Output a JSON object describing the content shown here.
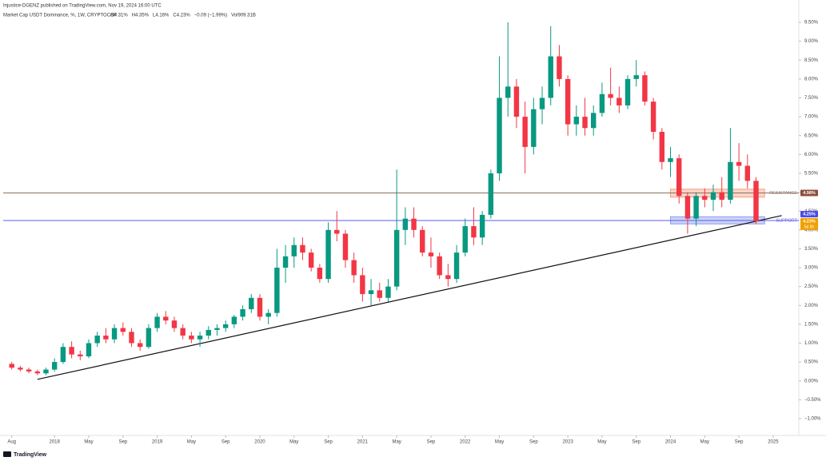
{
  "header": {
    "publisher": "Injustice-DGENZ published on TradingView.com, Nov 19, 2024 16:00 UTC",
    "symbol": "Market Cap USDT Dominance, %, 1W, CRYPTOCAP",
    "ohlc": [
      "O4.31%",
      "H4.35%",
      "L4.16%",
      "C4.23%",
      "−0.09 (−1.99%)",
      "Vol909.31B"
    ]
  },
  "footer": {
    "brand": "TradingView"
  },
  "chart_data": {
    "type": "candlestick",
    "colors": {
      "up": "#089981",
      "down": "#f23645"
    },
    "grid": false,
    "x": [
      "2017-08",
      "2017-09",
      "2017-10",
      "2017-11",
      "2017-12",
      "2018-01",
      "2018-02",
      "2018-03",
      "2018-04",
      "2018-05",
      "2018-06",
      "2018-07",
      "2018-08",
      "2018-09",
      "2018-10",
      "2018-11",
      "2018-12",
      "2019-01",
      "2019-02",
      "2019-03",
      "2019-04",
      "2019-05",
      "2019-06",
      "2019-07",
      "2019-08",
      "2019-09",
      "2019-10",
      "2019-11",
      "2019-12",
      "2020-01",
      "2020-02",
      "2020-03",
      "2020-04",
      "2020-05",
      "2020-06",
      "2020-07",
      "2020-08",
      "2020-09",
      "2020-10",
      "2020-11",
      "2020-12",
      "2021-01",
      "2021-02",
      "2021-03",
      "2021-04",
      "2021-05",
      "2021-06",
      "2021-07",
      "2021-08",
      "2021-09",
      "2021-10",
      "2021-11",
      "2021-12",
      "2022-01",
      "2022-02",
      "2022-03",
      "2022-04",
      "2022-05",
      "2022-06",
      "2022-07",
      "2022-08",
      "2022-09",
      "2022-10",
      "2022-11",
      "2022-12",
      "2023-01",
      "2023-02",
      "2023-03",
      "2023-04",
      "2023-05",
      "2023-06",
      "2023-07",
      "2023-08",
      "2023-09",
      "2023-10",
      "2023-11",
      "2023-12",
      "2024-01",
      "2024-02",
      "2024-03",
      "2024-04",
      "2024-05",
      "2024-06",
      "2024-07",
      "2024-08",
      "2024-09",
      "2024-10",
      "2024-11"
    ],
    "open": [
      0.45,
      0.35,
      0.3,
      0.25,
      0.2,
      0.3,
      0.5,
      0.9,
      0.7,
      0.65,
      1.0,
      1.2,
      1.1,
      1.4,
      1.3,
      1.0,
      0.9,
      1.4,
      1.7,
      1.6,
      1.4,
      1.2,
      1.1,
      1.2,
      1.35,
      1.4,
      1.5,
      1.7,
      1.9,
      2.2,
      1.7,
      1.8,
      3.0,
      3.3,
      3.6,
      3.4,
      3.0,
      2.7,
      4.0,
      3.9,
      3.2,
      2.8,
      2.3,
      2.4,
      2.2,
      2.5,
      4.0,
      4.3,
      4.0,
      3.4,
      3.3,
      2.8,
      2.7,
      3.4,
      4.1,
      3.8,
      4.4,
      5.5,
      7.5,
      7.8,
      7.0,
      6.2,
      7.2,
      7.5,
      8.6,
      8.0,
      6.8,
      7.0,
      6.7,
      7.1,
      7.6,
      7.5,
      7.3,
      8.0,
      8.1,
      7.4,
      6.6,
      5.8,
      5.9,
      4.9,
      4.3,
      4.9,
      4.8,
      5.0,
      4.8,
      5.8,
      5.7,
      5.3
    ],
    "high": [
      0.5,
      0.4,
      0.35,
      0.3,
      0.35,
      0.6,
      1.0,
      1.05,
      0.8,
      1.1,
      1.3,
      1.4,
      1.5,
      1.55,
      1.4,
      1.1,
      1.5,
      1.8,
      1.85,
      1.7,
      1.5,
      1.3,
      1.3,
      1.45,
      1.5,
      1.6,
      1.75,
      2.0,
      2.3,
      2.3,
      1.9,
      3.5,
      3.6,
      3.8,
      3.8,
      3.5,
      3.1,
      4.2,
      4.5,
      4.0,
      3.4,
      3.0,
      2.7,
      2.6,
      2.7,
      5.6,
      4.6,
      4.6,
      4.1,
      3.8,
      3.4,
      3.1,
      3.6,
      4.3,
      4.6,
      4.5,
      5.6,
      8.6,
      9.5,
      8.0,
      7.4,
      7.5,
      7.8,
      9.4,
      8.9,
      8.1,
      7.3,
      7.5,
      7.3,
      7.9,
      8.3,
      7.8,
      8.1,
      8.5,
      8.2,
      7.5,
      6.7,
      6.2,
      6.0,
      5.0,
      5.0,
      5.1,
      5.2,
      5.4,
      6.7,
      6.3,
      6.0,
      5.4
    ],
    "low": [
      0.3,
      0.25,
      0.2,
      0.15,
      0.15,
      0.25,
      0.45,
      0.6,
      0.55,
      0.6,
      0.9,
      1.0,
      1.0,
      1.2,
      0.9,
      0.8,
      0.85,
      1.3,
      1.5,
      1.3,
      1.1,
      1.0,
      0.9,
      1.1,
      1.2,
      1.3,
      1.4,
      1.6,
      1.8,
      1.6,
      1.5,
      1.7,
      2.6,
      3.0,
      3.2,
      2.9,
      2.6,
      2.6,
      3.7,
      3.0,
      2.6,
      2.1,
      2.0,
      2.1,
      2.1,
      2.4,
      3.6,
      3.8,
      3.3,
      3.0,
      2.7,
      2.5,
      2.6,
      3.3,
      3.6,
      3.6,
      4.3,
      5.3,
      7.0,
      6.7,
      5.5,
      6.0,
      6.8,
      7.3,
      7.8,
      6.5,
      6.5,
      6.5,
      6.5,
      7.0,
      7.3,
      7.1,
      7.2,
      7.8,
      7.3,
      6.4,
      5.6,
      5.4,
      4.7,
      3.9,
      4.1,
      4.6,
      4.5,
      4.6,
      4.7,
      5.3,
      5.1,
      4.16
    ],
    "close": [
      0.35,
      0.3,
      0.25,
      0.2,
      0.3,
      0.5,
      0.9,
      0.7,
      0.65,
      1.0,
      1.2,
      1.1,
      1.4,
      1.3,
      1.0,
      0.9,
      1.4,
      1.7,
      1.6,
      1.4,
      1.2,
      1.1,
      1.2,
      1.35,
      1.4,
      1.5,
      1.7,
      1.9,
      2.2,
      1.7,
      1.8,
      3.0,
      3.3,
      3.6,
      3.4,
      3.0,
      2.7,
      4.0,
      3.9,
      3.2,
      2.8,
      2.3,
      2.4,
      2.2,
      2.5,
      4.0,
      4.3,
      4.0,
      3.4,
      3.3,
      2.8,
      2.7,
      3.4,
      4.1,
      3.8,
      4.4,
      5.5,
      7.5,
      7.8,
      7.0,
      6.2,
      7.2,
      7.5,
      8.6,
      8.0,
      6.8,
      7.0,
      6.7,
      7.1,
      7.6,
      7.5,
      7.3,
      8.0,
      8.1,
      7.4,
      6.6,
      5.8,
      5.9,
      4.9,
      4.3,
      4.9,
      4.8,
      5.0,
      4.8,
      5.8,
      5.7,
      5.3,
      4.23
    ],
    "xlim": [
      "2017-07",
      "2025-04"
    ],
    "xticks": [
      {
        "value": "2017-08",
        "label": "Aug"
      },
      {
        "value": "2018-01",
        "label": "2018"
      },
      {
        "value": "2018-05",
        "label": "May"
      },
      {
        "value": "2018-09",
        "label": "Sep"
      },
      {
        "value": "2019-01",
        "label": "2019"
      },
      {
        "value": "2019-05",
        "label": "May"
      },
      {
        "value": "2019-09",
        "label": "Sep"
      },
      {
        "value": "2020-01",
        "label": "2020"
      },
      {
        "value": "2020-05",
        "label": "May"
      },
      {
        "value": "2020-09",
        "label": "Sep"
      },
      {
        "value": "2021-01",
        "label": "2021"
      },
      {
        "value": "2021-05",
        "label": "May"
      },
      {
        "value": "2021-09",
        "label": "Sep"
      },
      {
        "value": "2022-01",
        "label": "2022"
      },
      {
        "value": "2022-05",
        "label": "May"
      },
      {
        "value": "2022-09",
        "label": "Sep"
      },
      {
        "value": "2023-01",
        "label": "2023"
      },
      {
        "value": "2023-05",
        "label": "May"
      },
      {
        "value": "2023-09",
        "label": "Sep"
      },
      {
        "value": "2024-01",
        "label": "2024"
      },
      {
        "value": "2024-05",
        "label": "May"
      },
      {
        "value": "2024-09",
        "label": "Sep"
      },
      {
        "value": "2025-01",
        "label": "2025"
      }
    ],
    "ylim": [
      -1.2,
      9.6
    ],
    "yticks": [
      {
        "value": 9.5,
        "label": "9.50%"
      },
      {
        "value": 9,
        "label": "9.00%"
      },
      {
        "value": 8.5,
        "label": "8.50%"
      },
      {
        "value": 8,
        "label": "8.00%"
      },
      {
        "value": 7.5,
        "label": "7.50%"
      },
      {
        "value": 7,
        "label": "7.00%"
      },
      {
        "value": 6.5,
        "label": "6.50%"
      },
      {
        "value": 6,
        "label": "6.00%"
      },
      {
        "value": 5.5,
        "label": "5.50%"
      },
      {
        "value": 5,
        "label": "5.00%"
      },
      {
        "value": 4.5,
        "label": "4.50%"
      },
      {
        "value": 4,
        "label": "4.00%"
      },
      {
        "value": 3.5,
        "label": "3.50%"
      },
      {
        "value": 3,
        "label": "3.00%"
      },
      {
        "value": 2.5,
        "label": "2.50%"
      },
      {
        "value": 2,
        "label": "2.00%"
      },
      {
        "value": 1.5,
        "label": "1.50%"
      },
      {
        "value": 1,
        "label": "1.00%"
      },
      {
        "value": 0.5,
        "label": "0.50%"
      },
      {
        "value": 0,
        "label": "0.00%"
      },
      {
        "value": -0.5,
        "label": "−0.50%"
      },
      {
        "value": -1,
        "label": "−1.00%"
      }
    ],
    "levels": [
      {
        "name": "RESISTANCE",
        "value": 4.98,
        "value_label": "4.98%",
        "color": "#8d6e63",
        "tag_color": "#8d4f3c"
      },
      {
        "name": "SUPPORT",
        "value": 4.25,
        "value_label": "4.25%",
        "color": "#5b5bef",
        "tag_color": "#4b4be6"
      }
    ],
    "zones": [
      {
        "start": "2024-01",
        "end": "2024-12",
        "low": 4.87,
        "high": 5.08,
        "color": "#f3a183"
      },
      {
        "start": "2024-01",
        "end": "2024-12",
        "low": 4.16,
        "high": 4.35,
        "color": "#8c9cf0"
      }
    ],
    "trendline": {
      "start": {
        "x": "2017-11",
        "y": 0.04
      },
      "end": {
        "x": "2025-02",
        "y": 4.38
      },
      "color": "#111111"
    },
    "last_price": {
      "value": 4.23,
      "label": "4.23%",
      "countdown": "5d 8h",
      "color": "#f0a000"
    }
  }
}
